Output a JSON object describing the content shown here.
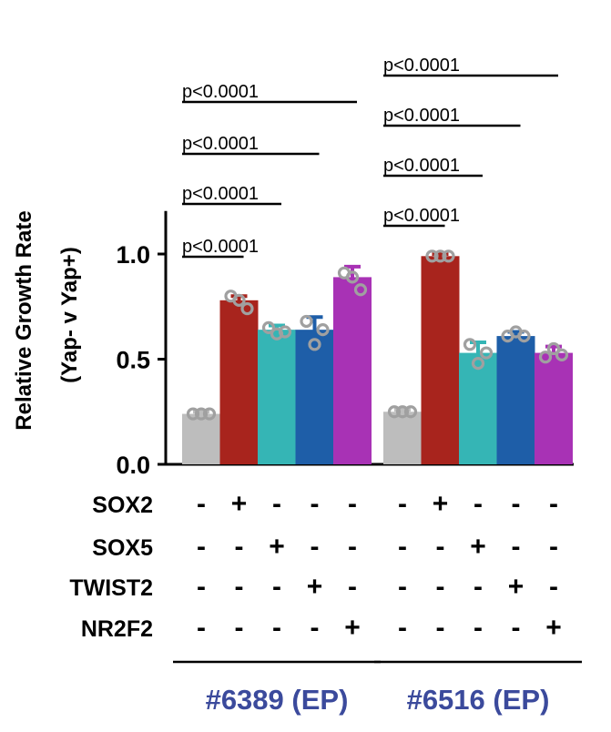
{
  "chart_data": {
    "type": "bar",
    "ylabel_line1": "Relative Growth Rate",
    "ylabel_line2": "(Yap- v Yap+)",
    "ylim": [
      0,
      1.2
    ],
    "yticks": [
      {
        "value": 0.0,
        "label": "0.0"
      },
      {
        "value": 0.5,
        "label": "0.5"
      },
      {
        "value": 1.0,
        "label": "1.0"
      }
    ],
    "grid": false,
    "colors": [
      "#bdbdbd",
      "#a8241d",
      "#35b5b5",
      "#1e5ea8",
      "#a832b5"
    ],
    "marker_names": [
      "SOX2",
      "SOX5",
      "TWIST2",
      "NR2F2"
    ],
    "design": [
      [
        "-",
        "+",
        "-",
        "-",
        "-"
      ],
      [
        "-",
        "-",
        "+",
        "-",
        "-"
      ],
      [
        "-",
        "-",
        "-",
        "+",
        "-"
      ],
      [
        "-",
        "-",
        "-",
        "-",
        "+"
      ]
    ],
    "groups": [
      {
        "label": "#6389 (EP)",
        "values": [
          0.24,
          0.78,
          0.64,
          0.64,
          0.89
        ],
        "errors": [
          0.01,
          0.02,
          0.02,
          0.06,
          0.05
        ],
        "points": [
          [
            0.24,
            0.24,
            0.24
          ],
          [
            0.8,
            0.78,
            0.74
          ],
          [
            0.65,
            0.62,
            0.63
          ],
          [
            0.68,
            0.57,
            0.64
          ],
          [
            0.91,
            0.89,
            0.83
          ]
        ],
        "pvalues": [
          "p<0.0001",
          "p<0.0001",
          "p<0.0001",
          "p<0.0001"
        ]
      },
      {
        "label": "#6516 (EP)",
        "values": [
          0.25,
          0.99,
          0.53,
          0.61,
          0.53
        ],
        "errors": [
          0.01,
          0.01,
          0.05,
          0.02,
          0.03
        ],
        "points": [
          [
            0.25,
            0.25,
            0.25
          ],
          [
            0.99,
            0.99,
            0.99
          ],
          [
            0.57,
            0.48,
            0.53
          ],
          [
            0.61,
            0.63,
            0.61
          ],
          [
            0.51,
            0.55,
            0.52
          ]
        ],
        "pvalues": [
          "p<0.0001",
          "p<0.0001",
          "p<0.0001",
          "p<0.0001"
        ]
      }
    ]
  }
}
